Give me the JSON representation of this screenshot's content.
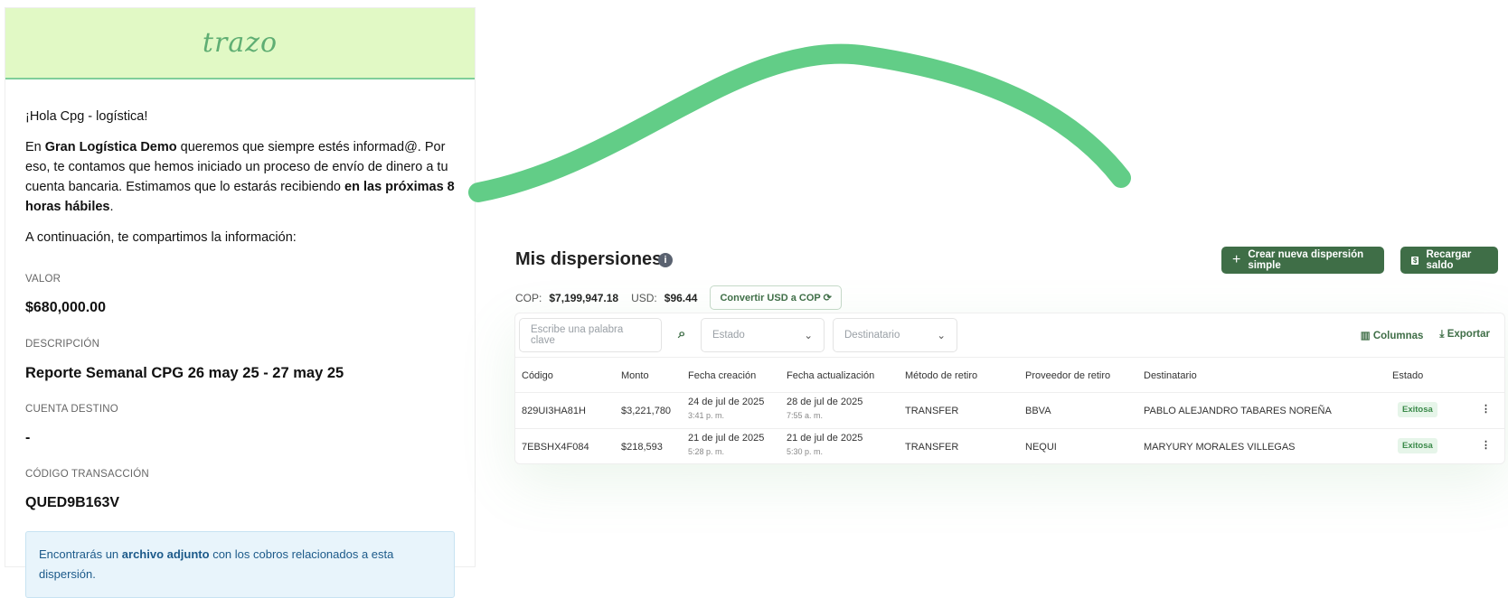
{
  "email": {
    "logo": "trazo",
    "greeting": "¡Hola Cpg - logística!",
    "intro_1": "En ",
    "company": "Gran Logística Demo",
    "intro_2": " queremos que siempre estés informad@. Por eso, te contamos que hemos iniciado un proceso de envío de dinero a tu cuenta bancaria. Estimamos que lo estarás recibiendo ",
    "intro_bold": "en las próximas 8 horas hábiles",
    "intro_3": ".",
    "continue": "A continuación, te compartimos la información:",
    "fields": [
      {
        "label": "VALOR",
        "value": "$680,000.00"
      },
      {
        "label": "DESCRIPCIÓN",
        "value": "Reporte Semanal CPG 26 may 25 - 27 may 25"
      },
      {
        "label": "CUENTA DESTINO",
        "value": "-"
      },
      {
        "label": "CÓDIGO TRANSACCIÓN",
        "value": "QUED9B163V"
      }
    ],
    "note_1": "Encontrarás un ",
    "note_bold": "archivo adjunto",
    "note_2": " con los cobros relacionados a esta dispersión."
  },
  "app": {
    "title": "Mis dispersiones",
    "create_button": "Crear nueva dispersión simple",
    "reload_button": "Recargar saldo",
    "cop_label": "COP:",
    "cop_value": "$7,199,947.18",
    "usd_label": "USD:",
    "usd_value": "$96.44",
    "convert_button": "Convertir USD a COP",
    "search_placeholder": "Escribe una palabra clave",
    "estado_filter": "Estado",
    "destinatario_filter": "Destinatario",
    "columns_button": "Columnas",
    "export_button": "Exportar",
    "headers": [
      "Código",
      "Monto",
      "Fecha creación",
      "Fecha actualización",
      "Método de retiro",
      "Proveedor de retiro",
      "Destinatario",
      "Estado"
    ],
    "rows": [
      {
        "codigo": "829UI3HA81H",
        "monto": "$3,221,780",
        "creacion": "24 de jul de 2025",
        "creacion_hora": "3:41 p. m.",
        "actualizacion": "28 de jul de 2025",
        "actualizacion_hora": "7:55 a. m.",
        "metodo": "TRANSFER",
        "proveedor": "BBVA",
        "destinatario": "PABLO ALEJANDRO TABARES NOREÑA",
        "estado": "Exitosa"
      },
      {
        "codigo": "7EBSHX4F084",
        "monto": "$218,593",
        "creacion": "21 de jul de 2025",
        "creacion_hora": "5:28 p. m.",
        "actualizacion": "21 de jul de 2025",
        "actualizacion_hora": "5:30 p. m.",
        "metodo": "TRANSFER",
        "proveedor": "NEQUI",
        "destinatario": "MARYURY MORALES VILLEGAS",
        "estado": "Exitosa"
      }
    ]
  },
  "colors": {
    "accent": "#3f6e47",
    "curve": "#62cd87",
    "header_bg": "#e1f9c5"
  }
}
